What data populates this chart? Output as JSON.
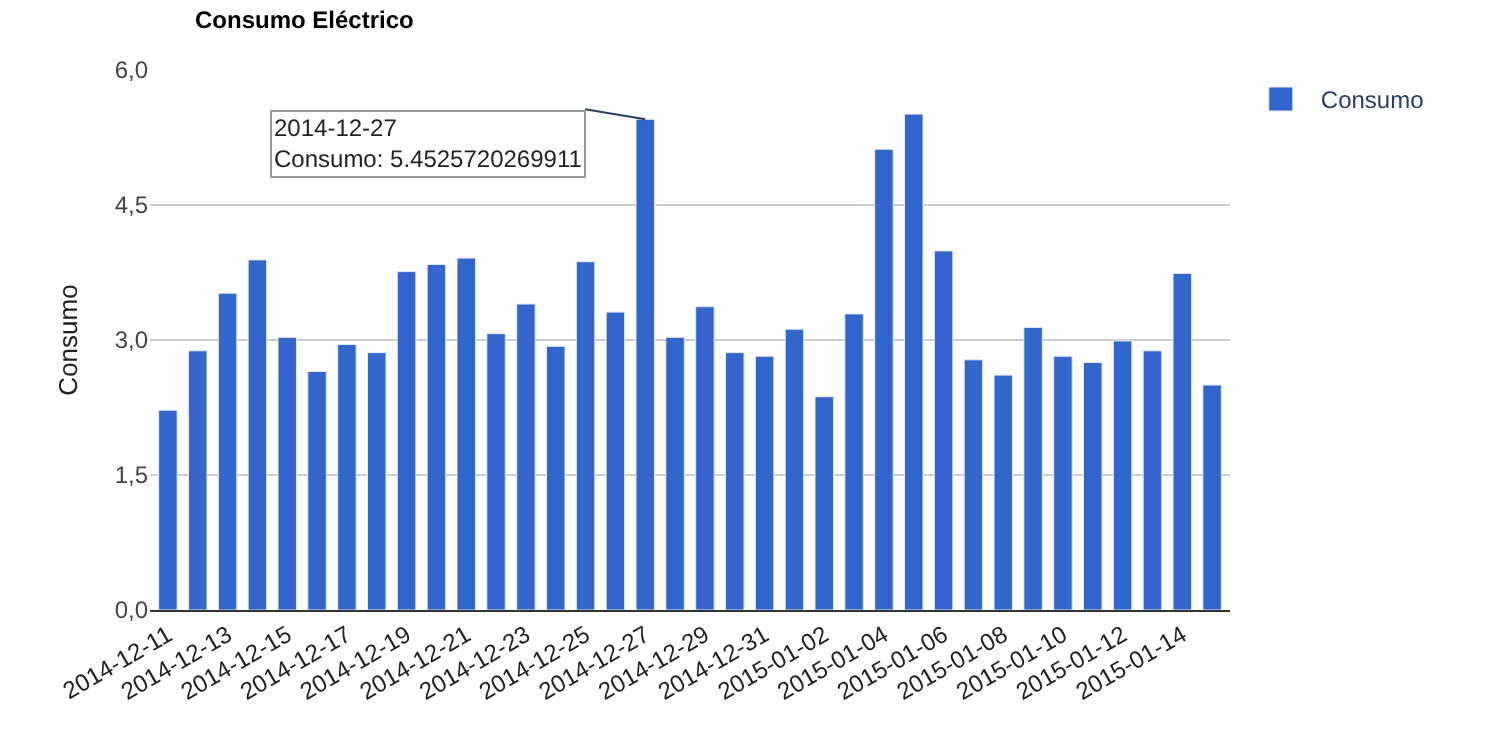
{
  "chart_data": {
    "type": "bar",
    "title": "Consumo Eléctrico",
    "ylabel": "Consumo",
    "categories": [
      "2014-12-11",
      null,
      "2014-12-13",
      null,
      "2014-12-15",
      null,
      "2014-12-17",
      null,
      "2014-12-19",
      null,
      "2014-12-21",
      null,
      "2014-12-23",
      null,
      "2014-12-25",
      null,
      "2014-12-27",
      null,
      "2014-12-29",
      null,
      "2014-12-31",
      null,
      "2015-01-02",
      null,
      "2015-01-04",
      null,
      "2015-01-06",
      null,
      "2015-01-08",
      null,
      "2015-01-10",
      null,
      "2015-01-12",
      null,
      "2015-01-14",
      null
    ],
    "series": [
      {
        "name": "Consumo",
        "color": "#3366cc",
        "values": [
          2.22,
          2.88,
          3.52,
          3.89,
          3.03,
          2.65,
          2.95,
          2.86,
          3.76,
          3.84,
          3.91,
          3.07,
          3.4,
          2.93,
          3.87,
          3.31,
          5.4525720269911,
          3.03,
          3.37,
          2.86,
          2.82,
          3.12,
          2.37,
          3.29,
          5.12,
          5.51,
          3.99,
          2.78,
          2.61,
          3.14,
          2.82,
          2.75,
          2.99,
          2.88,
          3.74,
          2.5
        ]
      }
    ],
    "ylim": [
      0,
      6
    ],
    "yticks": [
      {
        "value": 0,
        "label": "0,0"
      },
      {
        "value": 1.5,
        "label": "1,5"
      },
      {
        "value": 3,
        "label": "3,0"
      },
      {
        "value": 4.5,
        "label": "4,5"
      },
      {
        "value": 6,
        "label": "6,0"
      }
    ],
    "grid": "y",
    "legend": "right",
    "annotations": [
      {
        "text": "2014-12-27\nConsumo: 5.4525720269911",
        "x": "2014-12-27",
        "y": 5.4525720269911
      }
    ]
  }
}
